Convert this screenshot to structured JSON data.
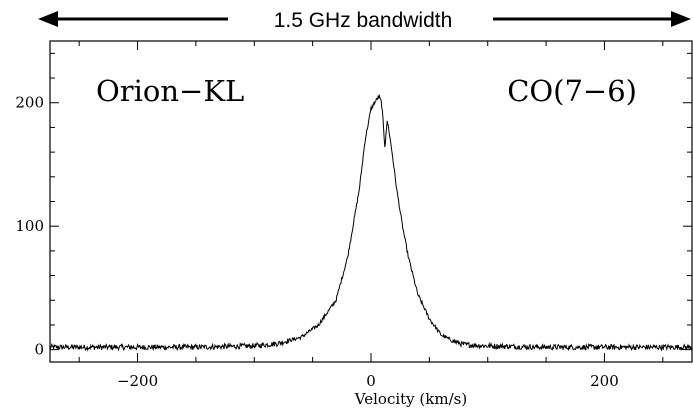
{
  "header": {
    "bandwidth_label": "1.5 GHz bandwidth"
  },
  "chart_data": {
    "type": "line",
    "title": "",
    "xlabel": "Velocity (km/s)",
    "ylabel": "",
    "xlim": [
      -275,
      275
    ],
    "ylim": [
      -10,
      250
    ],
    "xticks": [
      -200,
      0,
      200
    ],
    "yticks": [
      0,
      100,
      200
    ],
    "x_tick_labels": [
      "−200",
      "0",
      "200"
    ],
    "y_tick_labels": [
      "0",
      "100",
      "200"
    ],
    "annotations": [
      {
        "text": "Orion−KL",
        "position": "top-left"
      },
      {
        "text": "CO(7−6)",
        "position": "top-right"
      }
    ],
    "series": [
      {
        "x": [
          -275,
          -150,
          -100,
          -80,
          -60,
          -45,
          -30,
          -20,
          -10,
          -5,
          0,
          3,
          5,
          7,
          9,
          10,
          11,
          12,
          13,
          14,
          15,
          18,
          22,
          27,
          32,
          40,
          50,
          60,
          70,
          80,
          100,
          150,
          275
        ],
        "y": [
          2,
          2,
          3,
          5,
          10,
          20,
          40,
          75,
          130,
          170,
          195,
          200,
          203,
          205,
          200,
          190,
          175,
          163,
          178,
          185,
          180,
          160,
          130,
          100,
          75,
          45,
          25,
          12,
          7,
          4,
          3,
          2,
          2
        ]
      }
    ],
    "grid": false,
    "legend": "none"
  }
}
